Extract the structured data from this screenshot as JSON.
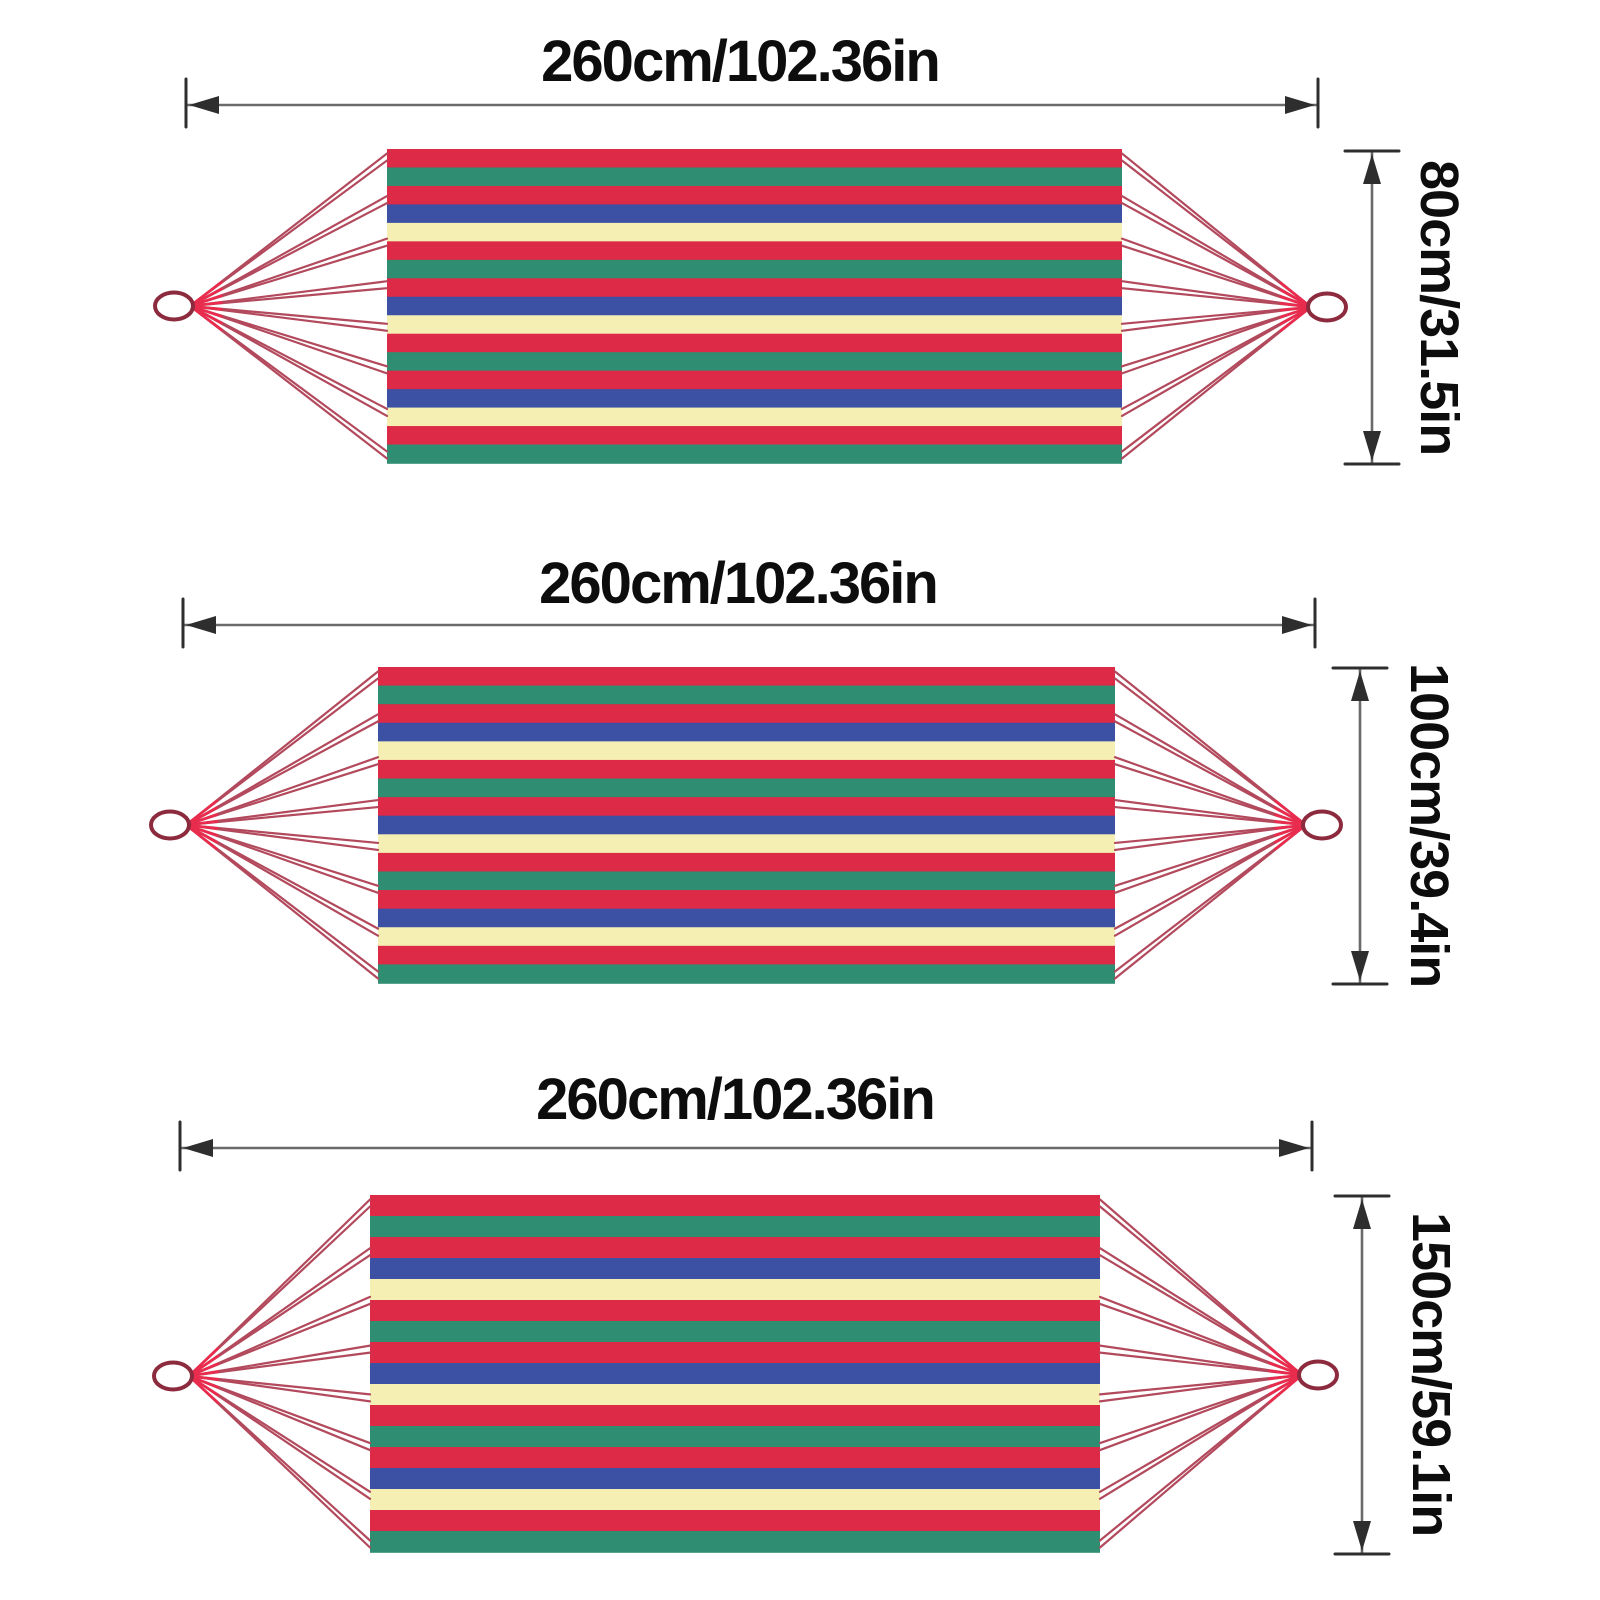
{
  "figure": {
    "description_labels": {
      "hammock_top": {
        "width_label": "260cm/102.36in",
        "height_label": "80cm/31.5in"
      },
      "hammock_middle": {
        "width_label": "260cm/102.36in",
        "height_label": "100cm/39.4in"
      },
      "hammock_bottom": {
        "width_label": "260cm/102.36in",
        "height_label": "150cm/59.1in"
      }
    }
  },
  "hammocks": [
    {
      "name": "hammock-80cm",
      "width_label": "260cm/102.36in",
      "height_label": "80cm/31.5in"
    },
    {
      "name": "hammock-100cm",
      "width_label": "260cm/102.36in",
      "height_label": "100cm/39.4in"
    },
    {
      "name": "hammock-150cm",
      "width_label": "260cm/102.36in",
      "height_label": "150cm/59.1in"
    }
  ],
  "stripe_colors": {
    "red": "#DC2A47",
    "green": "#2F8E71",
    "blue": "#3C51A4",
    "cream": "#F5EFB4"
  },
  "stripe_sequence": [
    "red",
    "green",
    "red",
    "blue",
    "cream",
    "red",
    "green",
    "red",
    "blue",
    "cream",
    "red",
    "green",
    "red",
    "blue",
    "cream",
    "red",
    "green"
  ],
  "rope_color": "#B2495C",
  "rope_highlight_color": "#EA2B4D",
  "ring_fill_color": "#FFFFFF",
  "ring_stroke_color": "#8C2B3D",
  "dimension_line_color": "#6a6a6a",
  "dimension_marker_color": "#2e2e2e",
  "text_color": "#0d0d0d"
}
